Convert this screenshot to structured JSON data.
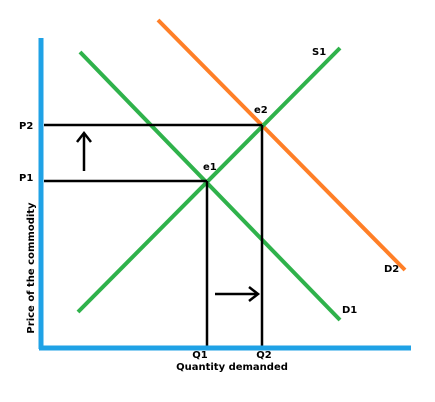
{
  "diagram": {
    "x_axis_label": "Quantity demanded",
    "y_axis_label": "Price of the commodity",
    "price_labels": {
      "p1": "P1",
      "p2": "P2"
    },
    "quantity_labels": {
      "q1": "Q1",
      "q2": "Q2"
    },
    "curve_labels": {
      "supply": "S1",
      "demand_initial": "D1",
      "demand_shifted": "D2"
    },
    "equilibrium_labels": {
      "initial": "e1",
      "new": "e2"
    },
    "colors": {
      "axes": "#1fa2e6",
      "supply": "#2fb24b",
      "demand_initial": "#2fb24b",
      "demand_shifted": "#ff7f27",
      "guides": "#000000",
      "arrows": "#000000"
    }
  }
}
